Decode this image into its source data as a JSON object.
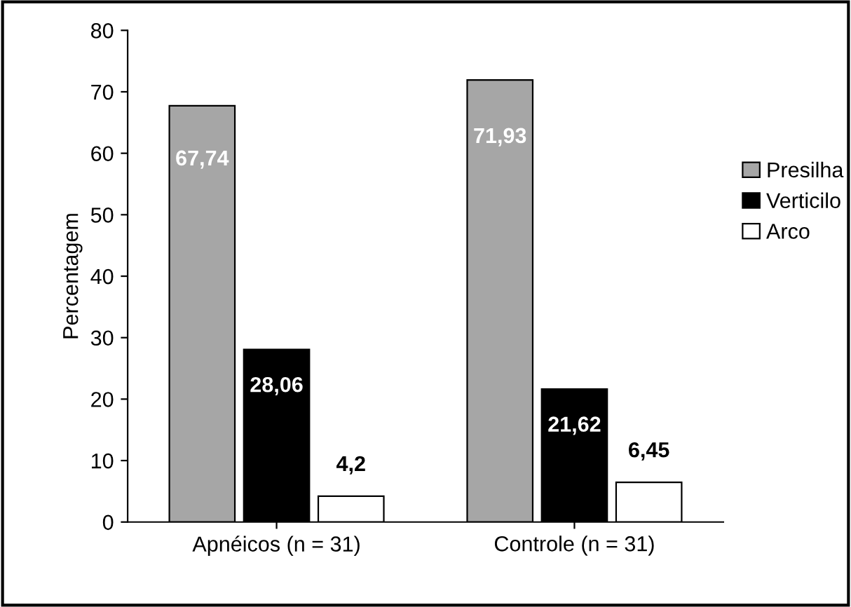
{
  "chart_data": {
    "type": "bar",
    "ylabel": "Percentagem",
    "categories": [
      "Apnéicos (n = 31)",
      "Controle (n = 31)"
    ],
    "series": [
      {
        "name": "Presilha",
        "color": "#a6a6a6",
        "values": [
          67.74,
          71.93
        ],
        "value_labels": [
          "67,74",
          "71,93"
        ]
      },
      {
        "name": "Verticilo",
        "color": "#000000",
        "values": [
          28.06,
          21.62
        ],
        "value_labels": [
          "28,06",
          "21,62"
        ]
      },
      {
        "name": "Arco",
        "color": "#ffffff",
        "values": [
          4.2,
          6.45
        ],
        "value_labels": [
          "4,2",
          "6,45"
        ]
      }
    ],
    "ylim": [
      0,
      80
    ],
    "yticks": [
      0,
      10,
      20,
      30,
      40,
      50,
      60,
      70,
      80
    ],
    "grid": false,
    "legend": "right"
  }
}
